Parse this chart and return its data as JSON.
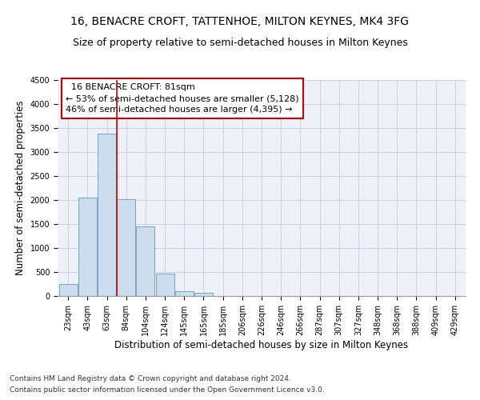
{
  "title": "16, BENACRE CROFT, TATTENHOE, MILTON KEYNES, MK4 3FG",
  "subtitle": "Size of property relative to semi-detached houses in Milton Keynes",
  "xlabel": "Distribution of semi-detached houses by size in Milton Keynes",
  "ylabel": "Number of semi-detached properties",
  "footnote1": "Contains HM Land Registry data © Crown copyright and database right 2024.",
  "footnote2": "Contains public sector information licensed under the Open Government Licence v3.0.",
  "annotation_title": "16 BENACRE CROFT: 81sqm",
  "annotation_line1": "← 53% of semi-detached houses are smaller (5,128)",
  "annotation_line2": "46% of semi-detached houses are larger (4,395) →",
  "bar_labels": [
    "23sqm",
    "43sqm",
    "63sqm",
    "84sqm",
    "104sqm",
    "124sqm",
    "145sqm",
    "165sqm",
    "185sqm",
    "206sqm",
    "226sqm",
    "246sqm",
    "266sqm",
    "287sqm",
    "307sqm",
    "327sqm",
    "348sqm",
    "368sqm",
    "388sqm",
    "409sqm",
    "429sqm"
  ],
  "bar_values": [
    255,
    2050,
    3375,
    2020,
    1450,
    475,
    100,
    70,
    0,
    0,
    0,
    0,
    0,
    0,
    0,
    0,
    0,
    0,
    0,
    0,
    0
  ],
  "bar_color": "#ccdded",
  "bar_edge_color": "#6699bb",
  "property_line_x": 3.0,
  "ylim": [
    0,
    4500
  ],
  "yticks": [
    0,
    500,
    1000,
    1500,
    2000,
    2500,
    3000,
    3500,
    4000,
    4500
  ],
  "grid_color": "#ccccdd",
  "bg_color": "#eef2f8",
  "annotation_box_color": "#ffffff",
  "annotation_box_edge": "#cc0000",
  "red_line_color": "#cc0000",
  "title_fontsize": 10,
  "subtitle_fontsize": 9,
  "axis_label_fontsize": 8.5,
  "tick_fontsize": 7,
  "annotation_fontsize": 8,
  "footnote_fontsize": 6.5
}
